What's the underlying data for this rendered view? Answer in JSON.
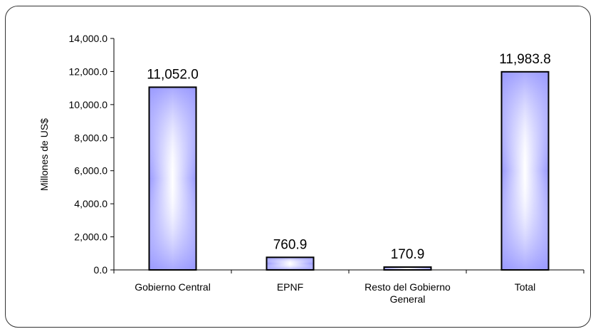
{
  "chart_data": {
    "type": "bar",
    "title": "",
    "xlabel": "",
    "ylabel": "Millones de US$",
    "ylim": [
      0,
      14000
    ],
    "yticks": [
      "0.0",
      "2,000.0",
      "4,000.0",
      "6,000.0",
      "8,000.0",
      "10,000.0",
      "12,000.0",
      "14,000.0"
    ],
    "yticks_values": [
      0,
      2000,
      4000,
      6000,
      8000,
      10000,
      12000,
      14000
    ],
    "grid": false,
    "legend": "none",
    "categories": [
      [
        "Gobierno Central"
      ],
      [
        "EPNF"
      ],
      [
        "Resto del Gobierno",
        "General"
      ],
      [
        "Total"
      ]
    ],
    "values": [
      11052.0,
      760.9,
      170.9,
      11983.8
    ],
    "data_labels": [
      "11,052.0",
      "760.9",
      "170.9",
      "11,983.8"
    ],
    "colors": {
      "bar_edge": "#9999ff",
      "bar_center": "#ffffff",
      "bar_border": "#000000"
    }
  }
}
